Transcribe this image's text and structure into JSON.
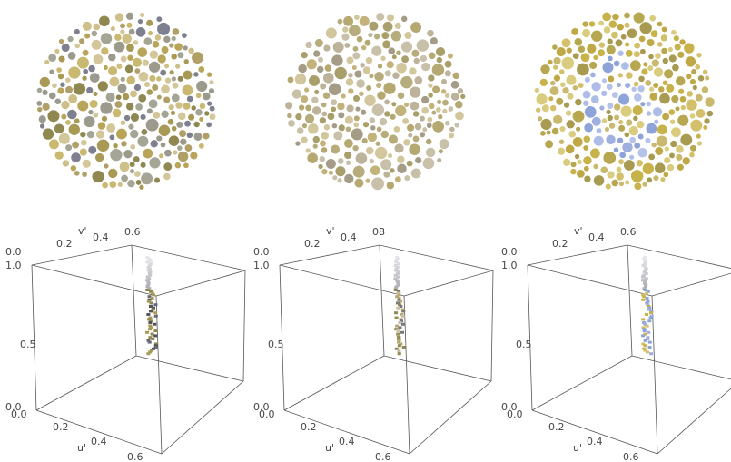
{
  "panels": [
    {
      "axes": {
        "v_label": "v'",
        "v_ticks": [
          "0.0",
          "0.2",
          "0.4",
          "0.6"
        ],
        "w_ticks": [
          "1.0",
          "0.5",
          "0.0"
        ],
        "u_label": "u'",
        "u_ticks": [
          "0.0",
          "0.2",
          "0.4",
          "0.6"
        ]
      }
    },
    {
      "axes": {
        "v_label": "v'",
        "v_ticks": [
          "0.0",
          "0.2",
          "0.4",
          "08"
        ],
        "w_ticks": [
          "1.0",
          "0.5",
          "0.0"
        ],
        "u_label": "u'",
        "u_ticks": [
          "0.0",
          "0.2",
          "0.4",
          "0.6"
        ]
      }
    },
    {
      "axes": {
        "v_label": "v'",
        "v_ticks": [
          "0.0",
          "0.2",
          "0.4",
          "0.6"
        ],
        "w_ticks": [
          "1.0",
          "0.5",
          "0.0"
        ],
        "u_label": "u'",
        "u_ticks": [
          "0.0",
          "0.2",
          "0.4",
          "0.6"
        ]
      }
    }
  ]
}
